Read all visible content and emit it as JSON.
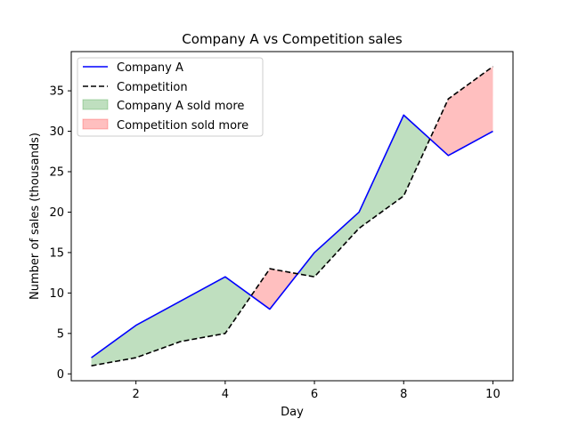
{
  "chart_data": {
    "type": "line",
    "title": "Company A vs Competition sales",
    "xlabel": "Day",
    "ylabel": "Number of sales (thousands)",
    "x": [
      1,
      2,
      3,
      4,
      5,
      6,
      7,
      8,
      9,
      10
    ],
    "xlim": [
      0.55,
      10.45
    ],
    "ylim": [
      -0.85,
      39.85
    ],
    "xticks": [
      2,
      4,
      6,
      8,
      10
    ],
    "yticks": [
      0,
      5,
      10,
      15,
      20,
      25,
      30,
      35
    ],
    "grid": false,
    "legend_position": "upper-left",
    "series": [
      {
        "name": "Company A",
        "values": [
          2,
          6,
          9,
          12,
          8,
          15,
          20,
          32,
          27,
          30
        ],
        "color": "#0000ff",
        "style": "solid"
      },
      {
        "name": "Competition",
        "values": [
          1,
          2,
          4,
          5,
          13,
          12,
          18,
          22,
          34,
          38
        ],
        "color": "#000000",
        "style": "dashed"
      }
    ],
    "fills": [
      {
        "name": "Company A sold more",
        "color": "#008000",
        "alpha": 0.25,
        "where": "Company A > Competition"
      },
      {
        "name": "Competition sold more",
        "color": "#ff0000",
        "alpha": 0.25,
        "where": "Competition > Company A"
      }
    ]
  }
}
